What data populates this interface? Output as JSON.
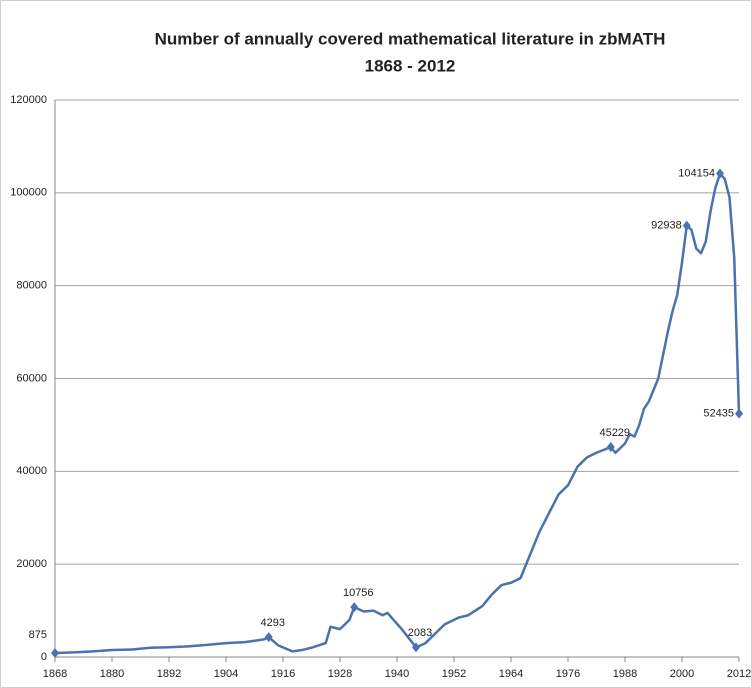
{
  "chart_data": {
    "type": "line",
    "title": "Number of annually covered mathematical literature in zbMATH",
    "subtitle": "1868 - 2012",
    "x": [
      1868,
      1872,
      1876,
      1880,
      1884,
      1888,
      1892,
      1896,
      1900,
      1904,
      1908,
      1912,
      1913,
      1915,
      1918,
      1920,
      1922,
      1925,
      1926,
      1928,
      1930,
      1931,
      1933,
      1935,
      1937,
      1938,
      1941,
      1944,
      1946,
      1950,
      1953,
      1955,
      1958,
      1960,
      1962,
      1964,
      1966,
      1968,
      1970,
      1972,
      1974,
      1976,
      1978,
      1980,
      1982,
      1985,
      1986,
      1988,
      1989,
      1990,
      1991,
      1992,
      1993,
      1994,
      1995,
      1996,
      1997,
      1998,
      1999,
      2000,
      2001,
      2002,
      2003,
      2004,
      2005,
      2006,
      2007,
      2008,
      2009,
      2010,
      2011,
      2012
    ],
    "series": [
      {
        "color": "#4a72b0",
        "values": [
          875,
          1000,
          1200,
          1500,
          1600,
          2000,
          2100,
          2300,
          2600,
          3000,
          3200,
          3800,
          4293,
          2500,
          1200,
          1500,
          2000,
          3000,
          6500,
          6000,
          8000,
          10756,
          9800,
          10000,
          9000,
          9500,
          6000,
          2083,
          3000,
          7000,
          8500,
          9000,
          11000,
          13500,
          15500,
          16000,
          17000,
          22000,
          27000,
          31000,
          35000,
          37000,
          41000,
          43000,
          44000,
          45229,
          44000,
          46000,
          48000,
          47500,
          50000,
          53500,
          55000,
          57500,
          60000,
          65000,
          70000,
          74500,
          78000,
          85000,
          92938,
          92000,
          88000,
          87000,
          89500,
          96000,
          101000,
          104154,
          103000,
          99000,
          86000,
          52435
        ],
        "value_labels": [
          "875",
          null,
          null,
          null,
          null,
          null,
          null,
          null,
          null,
          null,
          null,
          null,
          "4293",
          null,
          null,
          null,
          null,
          null,
          null,
          null,
          null,
          "10756",
          null,
          null,
          null,
          null,
          null,
          "2083",
          null,
          null,
          null,
          null,
          null,
          null,
          null,
          null,
          null,
          null,
          null,
          null,
          null,
          null,
          null,
          null,
          null,
          "45229",
          null,
          null,
          null,
          null,
          null,
          null,
          null,
          null,
          null,
          null,
          null,
          null,
          null,
          null,
          "92938",
          null,
          null,
          null,
          null,
          null,
          null,
          "104154",
          null,
          null,
          null,
          "52435"
        ]
      }
    ],
    "xlim": [
      1868,
      2012
    ],
    "xticks": [
      1868,
      1880,
      1892,
      1904,
      1916,
      1928,
      1940,
      1952,
      1964,
      1976,
      1988,
      2000,
      2012
    ],
    "ylim": [
      0,
      120000
    ],
    "yticks": [
      0,
      20000,
      40000,
      60000,
      80000,
      100000,
      120000
    ],
    "grid": true
  }
}
